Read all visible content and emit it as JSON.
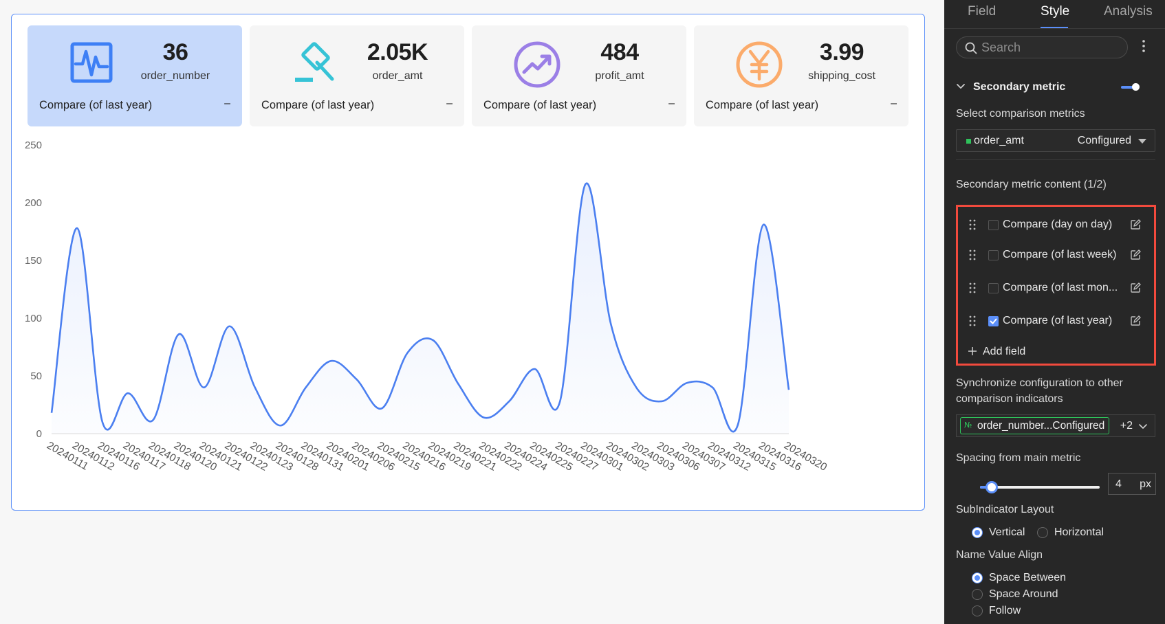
{
  "cards": [
    {
      "value": "36",
      "name": "order_number",
      "compare_label": "Compare (of last year)",
      "compare_value": "–",
      "icon": "activity-icon",
      "color": "#3d7ff5",
      "active": true
    },
    {
      "value": "2.05K",
      "name": "order_amt",
      "compare_label": "Compare (of last year)",
      "compare_value": "–",
      "icon": "gavel-icon",
      "color": "#36c3d6",
      "active": false
    },
    {
      "value": "484",
      "name": "profit_amt",
      "compare_label": "Compare (of last year)",
      "compare_value": "–",
      "icon": "trend-up-icon",
      "color": "#9b7fe6",
      "active": false
    },
    {
      "value": "3.99",
      "name": "shipping_cost",
      "compare_label": "Compare (of last year)",
      "compare_value": "–",
      "icon": "yen-icon",
      "color": "#fbab6b",
      "active": false
    }
  ],
  "chart_data": {
    "type": "line",
    "smooth": true,
    "area_fill": true,
    "color": "#4b7ff0",
    "x": [
      "20240111",
      "20240112",
      "20240116",
      "20240117",
      "20240118",
      "20240120",
      "20240121",
      "20240122",
      "20240123",
      "20240128",
      "20240131",
      "20240201",
      "20240206",
      "20240215",
      "20240216",
      "20240219",
      "20240221",
      "20240222",
      "20240224",
      "20240225",
      "20240227",
      "20240301",
      "20240302",
      "20240303",
      "20240306",
      "20240307",
      "20240312",
      "20240315",
      "20240316",
      "20240320"
    ],
    "values": [
      18,
      178,
      10,
      35,
      12,
      86,
      40,
      93,
      40,
      7,
      40,
      63,
      47,
      22,
      70,
      81,
      43,
      14,
      28,
      56,
      28,
      216,
      95,
      40,
      28,
      44,
      40,
      8,
      181,
      38
    ],
    "ylim": [
      0,
      250
    ],
    "yticks": [
      0,
      50,
      100,
      150,
      200,
      250
    ],
    "grid": false
  },
  "sidebar": {
    "tabs": [
      {
        "label": "Field",
        "active": false
      },
      {
        "label": "Style",
        "active": true
      },
      {
        "label": "Analysis",
        "active": false
      }
    ],
    "search_placeholder": "Search",
    "section_title": "Secondary metric",
    "section_enabled": true,
    "select_comparison_label": "Select comparison metrics",
    "comparison_metric": {
      "name": "order_amt",
      "status": "Configured",
      "dot_color": "#2fc25b"
    },
    "content_label": "Secondary metric content (1/2)",
    "content_items": [
      {
        "label": "Compare (day on day)",
        "checked": false
      },
      {
        "label": "Compare (of last week)",
        "checked": false
      },
      {
        "label": "Compare (of last mon...",
        "checked": false
      },
      {
        "label": "Compare (of last year)",
        "checked": true
      }
    ],
    "add_field_label": "Add field",
    "sync_label": "Synchronize configuration to other comparison indicators",
    "sync_tag": "order_number...Configured",
    "sync_tag_icon": "№",
    "sync_more": "+2",
    "spacing_label": "Spacing from main metric",
    "spacing_value": "4",
    "spacing_fraction": 0.1,
    "spacing_unit": "px",
    "layout_label": "SubIndicator Layout",
    "layout_options": [
      {
        "label": "Vertical",
        "selected": true
      },
      {
        "label": "Horizontal",
        "selected": false
      }
    ],
    "align_label": "Name Value Align",
    "align_options": [
      {
        "label": "Space Between",
        "selected": true
      },
      {
        "label": "Space Around",
        "selected": false
      },
      {
        "label": "Follow",
        "selected": false
      }
    ]
  }
}
